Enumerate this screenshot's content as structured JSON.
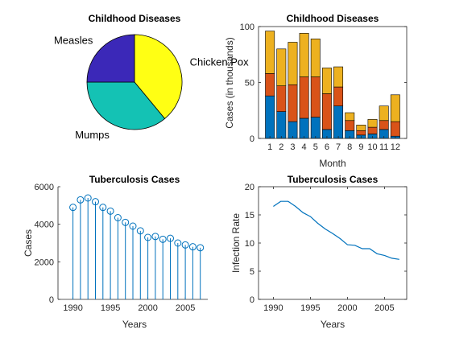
{
  "chart_data": [
    {
      "type": "pie",
      "title": "Childhood Diseases",
      "slices": [
        {
          "label": "Chicken Pox",
          "value": 39,
          "color": "#ffff14"
        },
        {
          "label": "Mumps",
          "value": 36,
          "color": "#14c2b4"
        },
        {
          "label": "Measles",
          "value": 25,
          "color": "#3b28b8"
        }
      ]
    },
    {
      "type": "bar",
      "stacked": true,
      "title": "Childhood Diseases",
      "xlabel": "Month",
      "ylabel": "Cases (in thousands)",
      "ylim": [
        0,
        100
      ],
      "yticks": [
        0,
        50,
        100
      ],
      "categories": [
        "1",
        "2",
        "3",
        "4",
        "5",
        "6",
        "7",
        "8",
        "9",
        "10",
        "11",
        "12"
      ],
      "series": [
        {
          "values": [
            38,
            24,
            15,
            18,
            19,
            8,
            29,
            7,
            3,
            4,
            8,
            2
          ],
          "color": "#0072bd"
        },
        {
          "values": [
            20,
            23,
            33,
            37,
            36,
            32,
            17,
            9,
            4,
            6,
            8,
            13
          ],
          "color": "#d95319"
        },
        {
          "values": [
            38,
            33,
            38,
            39,
            34,
            23,
            18,
            7,
            5,
            7,
            13,
            24
          ],
          "color": "#edb120"
        }
      ]
    },
    {
      "type": "scatter",
      "style": "stem",
      "title": "Tuberculosis Cases",
      "xlabel": "Years",
      "ylabel": "Cases",
      "xlim": [
        1988,
        2008
      ],
      "ylim": [
        0,
        6000
      ],
      "xticks": [
        1990,
        1995,
        2000,
        2005
      ],
      "yticks": [
        0,
        2000,
        4000,
        6000
      ],
      "x": [
        1990,
        1991,
        1992,
        1993,
        1994,
        1995,
        1996,
        1997,
        1998,
        1999,
        2000,
        2001,
        2002,
        2003,
        2004,
        2005,
        2006,
        2007
      ],
      "values": [
        4900,
        5300,
        5400,
        5200,
        4900,
        4700,
        4350,
        4100,
        3900,
        3650,
        3300,
        3350,
        3200,
        3250,
        3000,
        2900,
        2800,
        2750
      ],
      "color": "#0072bd"
    },
    {
      "type": "line",
      "title": "Tuberculosis Cases",
      "xlabel": "Years",
      "ylabel": "Infection Rate",
      "xlim": [
        1988,
        2008
      ],
      "ylim": [
        0,
        20
      ],
      "xticks": [
        1990,
        1995,
        2000,
        2005
      ],
      "yticks": [
        0,
        5,
        10,
        15,
        20
      ],
      "x": [
        1990,
        1991,
        1992,
        1993,
        1994,
        1995,
        1996,
        1997,
        1998,
        1999,
        2000,
        2001,
        2002,
        2003,
        2004,
        2005,
        2006,
        2007
      ],
      "values": [
        16.5,
        17.4,
        17.4,
        16.5,
        15.4,
        14.7,
        13.5,
        12.5,
        11.7,
        10.8,
        9.7,
        9.6,
        9.0,
        9.0,
        8.1,
        7.8,
        7.3,
        7.1
      ],
      "color": "#0072bd"
    }
  ]
}
